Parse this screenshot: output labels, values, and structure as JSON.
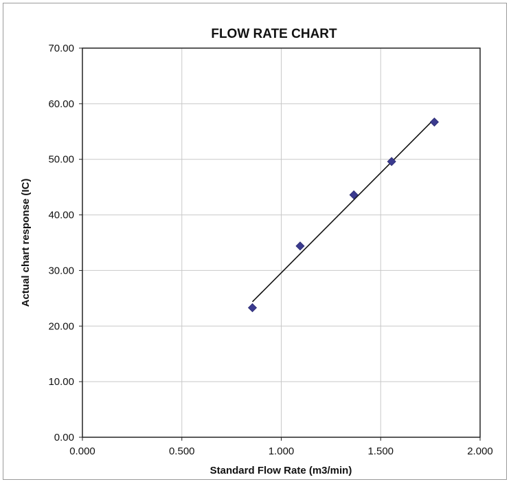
{
  "chart_data": {
    "type": "scatter",
    "title": "FLOW RATE CHART",
    "xlabel": "Standard Flow Rate (m3/min)",
    "ylabel": "Actual chart response (IC)",
    "xlim": [
      0,
      2
    ],
    "ylim": [
      0,
      70
    ],
    "x_ticks": [
      "0.000",
      "0.500",
      "1.000",
      "1.500",
      "2.000"
    ],
    "y_ticks": [
      "0.00",
      "10.00",
      "20.00",
      "30.00",
      "40.00",
      "50.00",
      "60.00",
      "70.00"
    ],
    "grid": true,
    "legend": "none",
    "series": [
      {
        "marker": "diamond",
        "color": "#3b3b8f",
        "points": [
          {
            "x": 0.855,
            "y": 23.3
          },
          {
            "x": 1.095,
            "y": 34.4
          },
          {
            "x": 1.365,
            "y": 43.6
          },
          {
            "x": 1.555,
            "y": 49.6
          },
          {
            "x": 1.77,
            "y": 56.7
          }
        ]
      }
    ],
    "trendline": {
      "type": "linear",
      "color": "#111111",
      "x_range": [
        0.855,
        1.77
      ],
      "slope": 35.96,
      "intercept": -6.38
    }
  }
}
